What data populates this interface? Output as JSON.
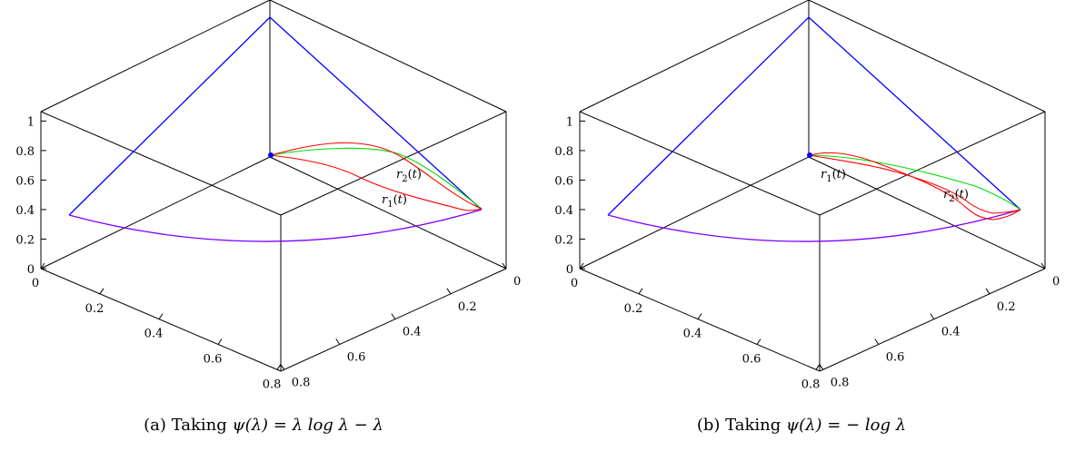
{
  "chart_data": [
    {
      "type": "line",
      "subfigure": "(a)",
      "caption_prefix": "Taking",
      "caption_math": "ψ(λ) = λ log λ − λ",
      "z_ticks": [
        "0",
        "0.2",
        "0.4",
        "0.6",
        "0.8",
        "1"
      ],
      "x_ticks": [
        "0",
        "0.2",
        "0.4",
        "0.6",
        "0.8"
      ],
      "y_ticks": [
        "0",
        "0.2",
        "0.4",
        "0.6",
        "0.8"
      ],
      "series": [
        {
          "name": "r_2(t)",
          "color": "#ff0000"
        },
        {
          "name": "r_1(t)",
          "color": "#ff0000"
        },
        {
          "color": "#00dd00"
        },
        {
          "color": "#0000ff"
        },
        {
          "color": "#8000ff"
        }
      ]
    },
    {
      "type": "line",
      "subfigure": "(b)",
      "caption_prefix": "Taking",
      "caption_math": "ψ(λ) = − log λ",
      "z_ticks": [
        "0",
        "0.2",
        "0.4",
        "0.6",
        "0.8",
        "1"
      ],
      "x_ticks": [
        "0",
        "0.2",
        "0.4",
        "0.6",
        "0.8"
      ],
      "y_ticks": [
        "0",
        "0.2",
        "0.4",
        "0.6",
        "0.8"
      ],
      "series": [
        {
          "name": "r_1(t)",
          "color": "#ff0000"
        },
        {
          "name": "r_2(t)",
          "color": "#ff0000"
        },
        {
          "color": "#00dd00"
        },
        {
          "color": "#0000ff"
        },
        {
          "color": "#8000ff"
        }
      ]
    }
  ]
}
